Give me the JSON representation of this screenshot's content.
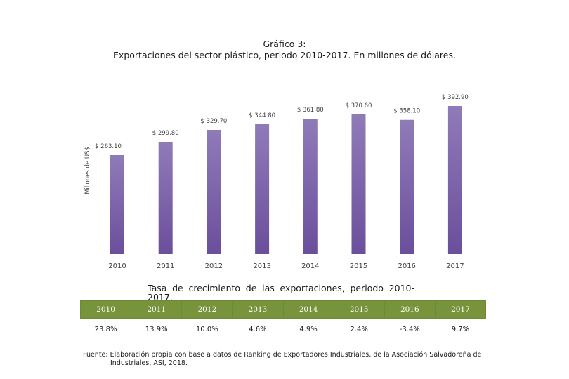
{
  "title": {
    "line1": "Gráfico 3:",
    "line2": "Exportaciones del sector plástico, periodo 2010-2017. En millones de dólares."
  },
  "chart_data": {
    "type": "bar",
    "title": "Exportaciones del sector plástico, periodo 2010-2017. En millones de dólares.",
    "xlabel": "",
    "ylabel": "Millones de US$",
    "categories": [
      "2010",
      "2011",
      "2012",
      "2013",
      "2014",
      "2015",
      "2016",
      "2017"
    ],
    "values": [
      263.1,
      299.8,
      329.7,
      344.8,
      361.8,
      370.6,
      358.1,
      392.9
    ],
    "labels": [
      "$ 263.10",
      "$ 299.80",
      "$ 329.70",
      "$ 344.80",
      "$ 361.80",
      "$ 370.60",
      "$ 358.10",
      "$ 392.90"
    ],
    "ylim": [
      0,
      400
    ],
    "bar_color_top": "#8f7bb8",
    "bar_color_bottom": "#6a4f9c",
    "grid": false,
    "legend": "none"
  },
  "growth_table": {
    "title": "Tasa de crecimiento de las exportaciones, periodo 2010-2017.",
    "years": [
      "2010",
      "2011",
      "2012",
      "2013",
      "2014",
      "2015",
      "2016",
      "2017"
    ],
    "rates": [
      "23.8%",
      "13.9%",
      "10.0%",
      "4.6%",
      "4.9%",
      "2.4%",
      "-3.4%",
      "9.7%"
    ],
    "header_color": "#77933c"
  },
  "source": {
    "line1": "Fuente: Elaboración propia con base a datos de Ranking de Exportadores Industriales, de la Asociación Salvadoreña de",
    "line2": "Industriales, ASI, 2018."
  }
}
